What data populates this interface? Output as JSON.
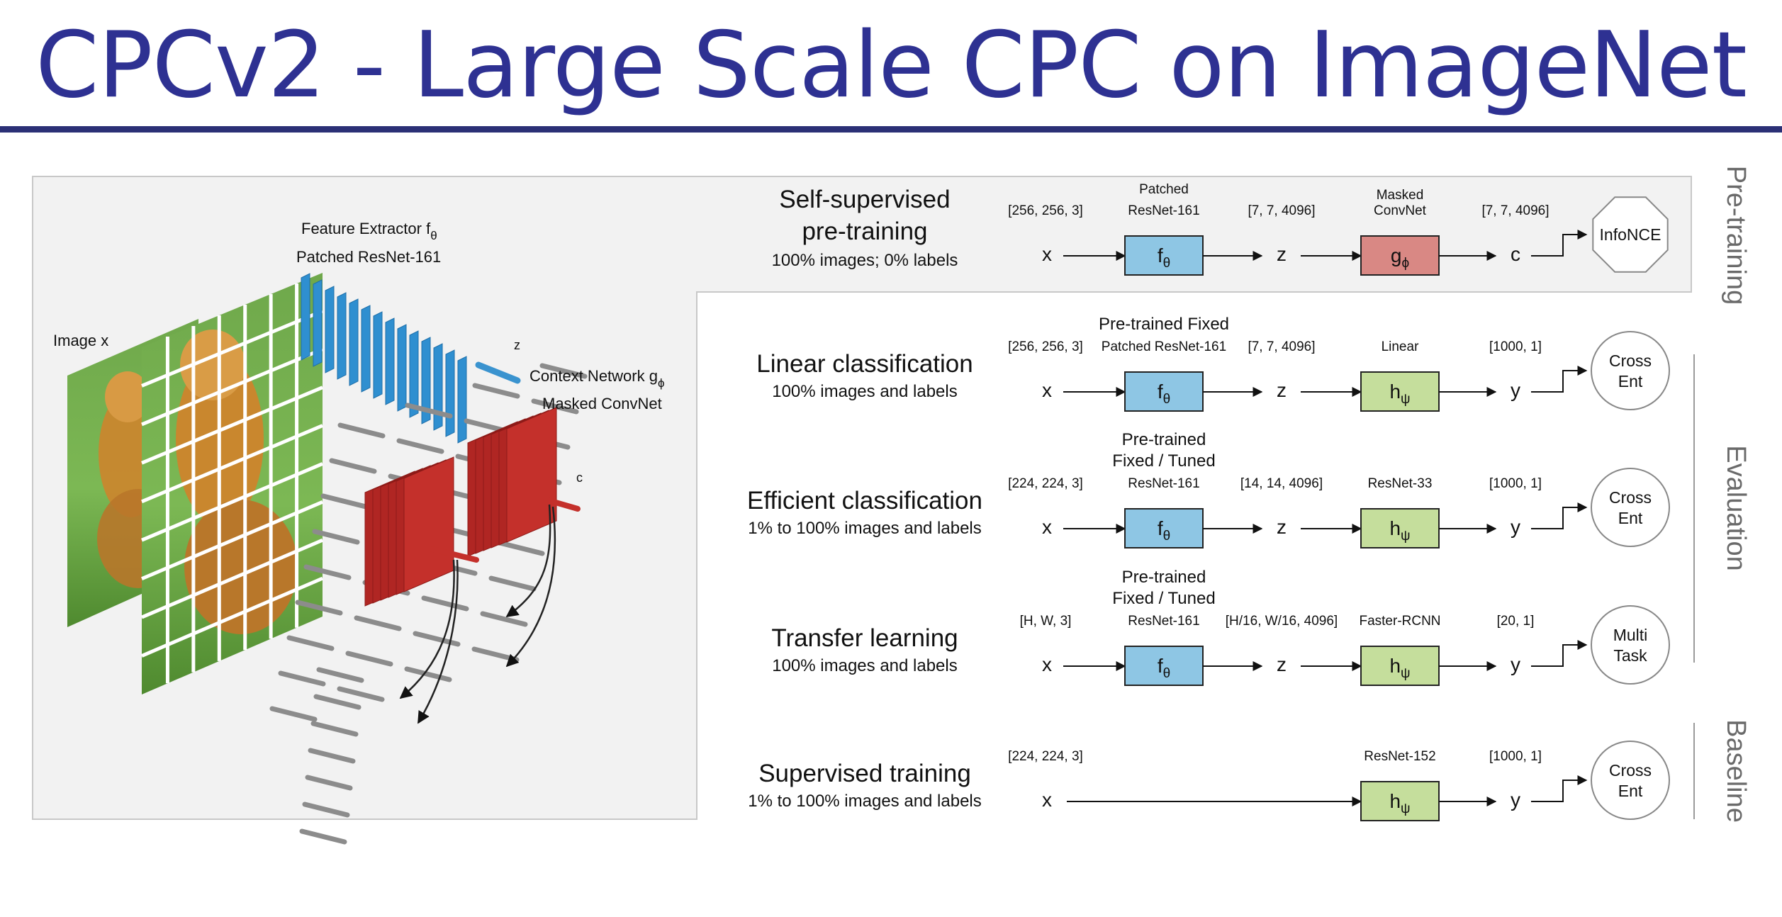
{
  "title": "CPCv2 - Large Scale CPC on ImageNet",
  "colors": {
    "title": "#2E3192",
    "encoder": "#8EC6E4",
    "context": "#D98884",
    "head": "#C5DE9C",
    "panel": "#F2F2F2"
  },
  "illustration": {
    "image_label": "Image x",
    "feature_extractor": "Feature Extractor f",
    "feature_extractor_sub": "θ",
    "patched_resnet": "Patched ResNet-161",
    "z_label": "z",
    "context_network": "Context Network g",
    "context_network_sub": "ϕ",
    "masked_convnet": "Masked ConvNet",
    "c_label": "c"
  },
  "rows": [
    {
      "title": "Self-supervised",
      "title2": "pre-training",
      "subtitle": "100% images; 0% labels",
      "in_shape": "[256, 256, 3]",
      "enc_caption": [
        "Patched",
        "ResNet-161"
      ],
      "mid_shape": "[7, 7, 4096]",
      "head_caption": [
        "Masked",
        "ConvNet"
      ],
      "out_shape": "[7, 7, 4096]",
      "x": "x",
      "enc": "f",
      "enc_sub": "θ",
      "z": "z",
      "head": "g",
      "head_sub": "ϕ",
      "out": "c",
      "loss": [
        "InfoNCE"
      ]
    },
    {
      "title": "Linear classification",
      "title2": "",
      "subtitle": "100% images and labels",
      "in_shape": "[256, 256, 3]",
      "enc_caption": [
        "Pre-trained Fixed",
        "Patched ResNet-161"
      ],
      "mid_shape": "[7, 7, 4096]",
      "head_caption": [
        "Linear"
      ],
      "out_shape": "[1000, 1]",
      "x": "x",
      "enc": "f",
      "enc_sub": "θ",
      "z": "z",
      "head": "h",
      "head_sub": "ψ",
      "out": "y",
      "loss": [
        "Cross",
        "Ent"
      ]
    },
    {
      "title": "Efficient classification",
      "title2": "",
      "subtitle": "1% to 100% images and labels",
      "in_shape": "[224, 224, 3]",
      "enc_caption": [
        "Pre-trained",
        "Fixed / Tuned",
        "ResNet-161"
      ],
      "mid_shape": "[14, 14, 4096]",
      "head_caption": [
        "ResNet-33"
      ],
      "out_shape": "[1000, 1]",
      "x": "x",
      "enc": "f",
      "enc_sub": "θ",
      "z": "z",
      "head": "h",
      "head_sub": "ψ",
      "out": "y",
      "loss": [
        "Cross",
        "Ent"
      ]
    },
    {
      "title": "Transfer learning",
      "title2": "",
      "subtitle": "100% images and labels",
      "in_shape": "[H, W, 3]",
      "enc_caption": [
        "Pre-trained",
        "Fixed / Tuned",
        "ResNet-161"
      ],
      "mid_shape": "[H/16, W/16, 4096]",
      "head_caption": [
        "Faster-RCNN"
      ],
      "out_shape": "[20, 1]",
      "x": "x",
      "enc": "f",
      "enc_sub": "θ",
      "z": "z",
      "head": "h",
      "head_sub": "ψ",
      "out": "y",
      "loss": [
        "Multi",
        "Task"
      ]
    },
    {
      "title": "Supervised training",
      "title2": "",
      "subtitle": "1% to 100% images and labels",
      "in_shape": "[224, 224, 3]",
      "enc_caption": [],
      "mid_shape": "",
      "head_caption": [
        "ResNet-152"
      ],
      "out_shape": "[1000, 1]",
      "x": "x",
      "enc": "",
      "enc_sub": "",
      "z": "",
      "head": "h",
      "head_sub": "ψ",
      "out": "y",
      "loss": [
        "Cross",
        "Ent"
      ]
    }
  ],
  "side_labels": {
    "pretraining": "Pre-training",
    "evaluation": "Evaluation",
    "baseline": "Baseline"
  }
}
